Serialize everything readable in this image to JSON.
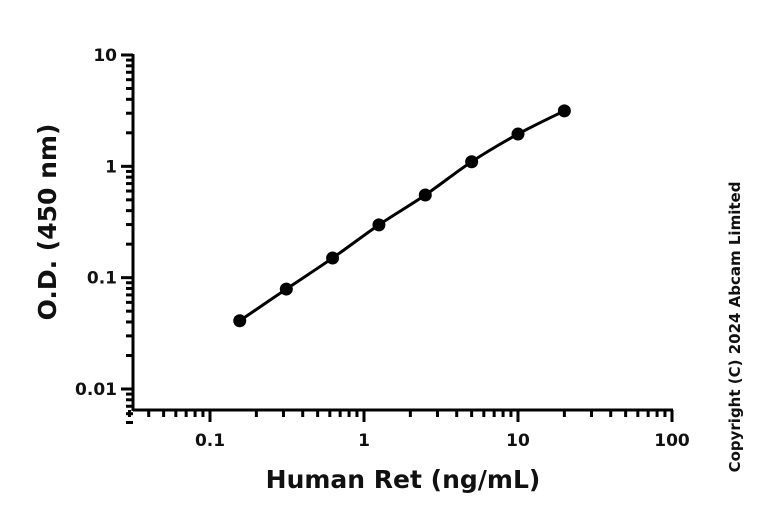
{
  "chart_data": {
    "type": "scatter",
    "title": "",
    "xlabel": "Human Ret (ng/mL)",
    "ylabel": "O.D. (450 nm)",
    "x_scale": "log",
    "y_scale": "log",
    "xlim": [
      0.03,
      100
    ],
    "ylim": [
      0.005,
      10
    ],
    "x_ticks": [
      "0.1",
      "1",
      "10",
      "100"
    ],
    "y_ticks": [
      "0.01",
      "0.1",
      "1",
      "10"
    ],
    "grid": false,
    "legend": "none",
    "series": [
      {
        "x": [
          0.156,
          0.313,
          0.625,
          1.25,
          2.5,
          5,
          10,
          20
        ],
        "y": [
          0.041,
          0.079,
          0.15,
          0.298,
          0.553,
          1.1,
          1.95,
          3.15
        ],
        "fit_curve": true
      }
    ]
  },
  "copyright": "Copyright (C) 2024 Abcam Limited",
  "colors": {
    "marker": "#000000",
    "line": "#000000",
    "axis": "#000000"
  }
}
